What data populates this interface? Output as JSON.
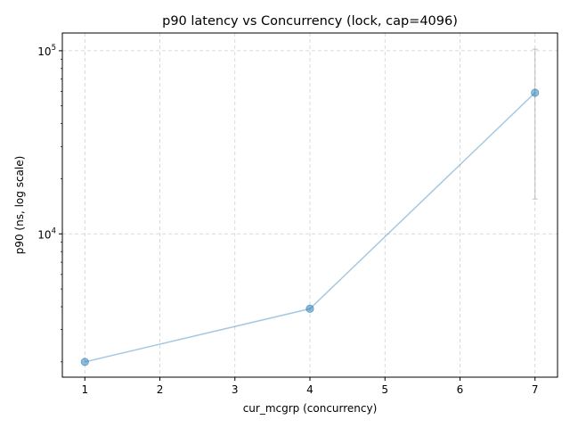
{
  "chart_data": {
    "type": "line",
    "title": "p90 latency vs Concurrency (lock, cap=4096)",
    "xlabel": "cur_mcgrp (concurrency)",
    "ylabel": "p90 (ns, log scale)",
    "xlim": [
      0.7,
      7.3
    ],
    "ylim": [
      1650,
      125000
    ],
    "yscale": "log",
    "grid": true,
    "x_ticks": [
      1,
      2,
      3,
      4,
      5,
      6,
      7
    ],
    "y_ticks": [
      {
        "value": 10000,
        "base": "10",
        "exp": "4"
      },
      {
        "value": 100000,
        "base": "10",
        "exp": "5"
      }
    ],
    "series": [
      {
        "color": "#1f77b4",
        "points": [
          {
            "x": 1,
            "y": 2000
          },
          {
            "x": 4,
            "y": 3900
          },
          {
            "x": 7,
            "y": 59000,
            "err_low": 15500,
            "err_high": 102000
          }
        ]
      }
    ]
  }
}
